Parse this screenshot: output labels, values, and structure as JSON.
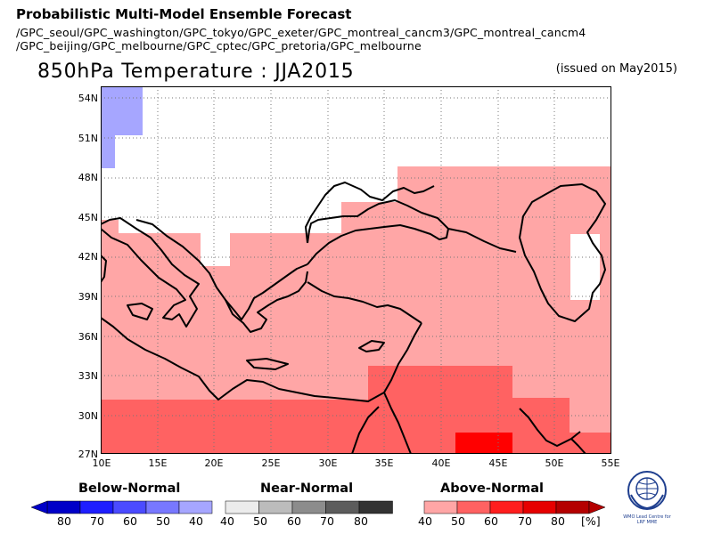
{
  "header": {
    "title": "Probabilistic Multi-Model Ensemble Forecast",
    "models_line1": "/GPC_seoul/GPC_washington/GPC_tokyo/GPC_exeter/GPC_montreal_cancm3/GPC_montreal_cancm4",
    "models_line2": "/GPC_beijing/GPC_melbourne/GPC_cptec/GPC_pretoria/GPC_melbourne",
    "main_title": "850hPa Temperature : JJA2015",
    "issued": "(issued on May2015)"
  },
  "map": {
    "lon_range": [
      10,
      55
    ],
    "lat_range": [
      27,
      55.5
    ],
    "lat_ticks": [
      "54N",
      "51N",
      "48N",
      "45N",
      "42N",
      "39N",
      "36N",
      "33N",
      "30N",
      "27N"
    ],
    "lon_ticks": [
      "10E",
      "15E",
      "20E",
      "25E",
      "30E",
      "35E",
      "40E",
      "45E",
      "50E",
      "55E"
    ],
    "grid": "dotted",
    "categories": {
      "above_40": "#ffa6a6",
      "above_50": "#ff6262",
      "above_60": "#ff0000",
      "below_40": "#a6a6ff"
    }
  },
  "legend": {
    "below": {
      "title": "Below-Normal",
      "labels": [
        "80",
        "70",
        "60",
        "50",
        "40"
      ],
      "colors": [
        "#0000c8",
        "#1e1eff",
        "#4b4bff",
        "#7878ff",
        "#a6a6ff"
      ]
    },
    "near": {
      "title": "Near-Normal",
      "labels": [
        "40",
        "50",
        "60",
        "70",
        "80"
      ],
      "colors": [
        "#ececec",
        "#bcbcbc",
        "#8c8c8c",
        "#5c5c5c",
        "#333333"
      ]
    },
    "above": {
      "title": "Above-Normal",
      "labels": [
        "40",
        "50",
        "60",
        "70",
        "80"
      ],
      "colors": [
        "#ffa6a6",
        "#ff6262",
        "#ff1e1e",
        "#e60000",
        "#b40000"
      ],
      "unit": "[%]"
    }
  },
  "logo": {
    "text_line1": "WMO Lead Centre for",
    "text_line2": "LRF MME"
  }
}
